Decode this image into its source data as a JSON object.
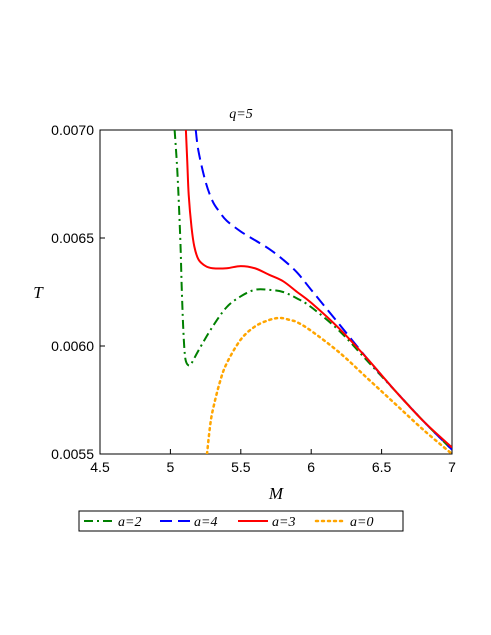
{
  "chart_data": {
    "type": "line",
    "title": "q=5",
    "xlabel": "M",
    "ylabel": "T",
    "xlim": [
      4.5,
      7.0
    ],
    "ylim": [
      0.0055,
      0.007
    ],
    "x_ticks": [
      "4.5",
      "5",
      "5.5",
      "6",
      "6.5",
      "7"
    ],
    "y_ticks": [
      "0.0055",
      "0.0060",
      "0.0065",
      "0.0070"
    ],
    "grid": false,
    "legend_position": "bottom",
    "series": [
      {
        "name": "a=2",
        "color": "#008000",
        "dash": "dash-dot",
        "x": [
          5.03,
          5.05,
          5.07,
          5.08,
          5.09,
          5.1,
          5.11,
          5.13,
          5.15,
          5.2,
          5.3,
          5.4,
          5.5,
          5.6,
          5.7,
          5.8,
          5.9,
          6.0,
          6.2,
          6.4,
          6.6,
          6.8,
          7.0
        ],
        "y": [
          0.007,
          0.0068,
          0.0065,
          0.00628,
          0.0061,
          0.00598,
          0.00593,
          0.00591,
          0.00592,
          0.00598,
          0.00609,
          0.00618,
          0.00623,
          0.00626,
          0.00626,
          0.00625,
          0.00622,
          0.00618,
          0.00607,
          0.00593,
          0.00579,
          0.00565,
          0.00552
        ]
      },
      {
        "name": "a=4",
        "color": "#0000ff",
        "dash": "long-dash",
        "x": [
          5.18,
          5.2,
          5.25,
          5.3,
          5.35,
          5.4,
          5.5,
          5.6,
          5.7,
          5.8,
          5.9,
          6.0,
          6.2,
          6.4,
          6.6,
          6.8,
          7.0
        ],
        "y": [
          0.007,
          0.0069,
          0.00676,
          0.00667,
          0.00662,
          0.00658,
          0.00653,
          0.00649,
          0.00645,
          0.0064,
          0.00634,
          0.00626,
          0.0061,
          0.00594,
          0.00579,
          0.00565,
          0.00552
        ]
      },
      {
        "name": "a=3",
        "color": "#ff0000",
        "dash": "solid",
        "x": [
          5.11,
          5.12,
          5.13,
          5.15,
          5.17,
          5.2,
          5.25,
          5.3,
          5.4,
          5.5,
          5.6,
          5.7,
          5.8,
          5.9,
          6.0,
          6.2,
          6.4,
          6.6,
          6.8,
          7.0
        ],
        "y": [
          0.007,
          0.00685,
          0.0067,
          0.00655,
          0.00646,
          0.0064,
          0.00637,
          0.00636,
          0.00636,
          0.00637,
          0.00636,
          0.00633,
          0.0063,
          0.00625,
          0.0062,
          0.00608,
          0.00594,
          0.00579,
          0.00565,
          0.00553
        ]
      },
      {
        "name": "a=0",
        "color": "#ffa500",
        "dash": "dotted",
        "x": [
          5.26,
          5.28,
          5.3,
          5.35,
          5.4,
          5.5,
          5.6,
          5.7,
          5.78,
          5.85,
          5.9,
          6.0,
          6.2,
          6.4,
          6.6,
          6.8,
          7.0
        ],
        "y": [
          0.0055,
          0.00562,
          0.0057,
          0.00583,
          0.00592,
          0.00603,
          0.00609,
          0.00612,
          0.00613,
          0.00612,
          0.00611,
          0.00607,
          0.00597,
          0.00585,
          0.00573,
          0.00561,
          0.0055
        ]
      }
    ]
  }
}
